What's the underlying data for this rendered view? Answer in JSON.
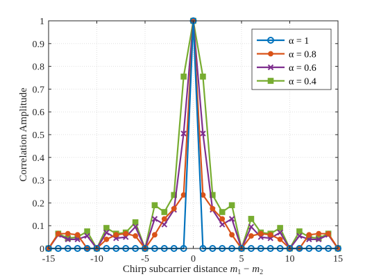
{
  "chart_data": {
    "type": "line",
    "xlabel": "Chirp subcarrier distance ",
    "xlabel_math": "m",
    "xlabel_sub1": "1",
    "xlabel_minus": " − ",
    "xlabel_math2": "m",
    "xlabel_sub2": "2",
    "ylabel": "Correlation Amplitude",
    "xlim": [
      -15,
      15
    ],
    "ylim": [
      0,
      1
    ],
    "xticks": [
      -15,
      -10,
      -5,
      0,
      5,
      10,
      15
    ],
    "xtick_labels": [
      "-15",
      "-10",
      "-5",
      "0",
      "5",
      "10",
      "15"
    ],
    "yticks": [
      0,
      0.1,
      0.2,
      0.3,
      0.4,
      0.5,
      0.6,
      0.7,
      0.8,
      0.9,
      1
    ],
    "ytick_labels": [
      "0",
      "0.1",
      "0.2",
      "0.3",
      "0.4",
      "0.5",
      "0.6",
      "0.7",
      "0.8",
      "0.9",
      "1"
    ],
    "grid": true,
    "legend_position": "top-right",
    "x": [
      -15,
      -14,
      -13,
      -12,
      -11,
      -10,
      -9,
      -8,
      -7,
      -6,
      -5,
      -4,
      -3,
      -2,
      -1,
      0,
      1,
      2,
      3,
      4,
      5,
      6,
      7,
      8,
      9,
      10,
      11,
      12,
      13,
      14,
      15
    ],
    "series": [
      {
        "name": "α = 1",
        "color": "#0072BD",
        "marker": "circle",
        "values": [
          0,
          0,
          0,
          0,
          0,
          0,
          0,
          0,
          0,
          0,
          0,
          0,
          0,
          0,
          0,
          1,
          0,
          0,
          0,
          0,
          0,
          0,
          0,
          0,
          0,
          0,
          0,
          0,
          0,
          0,
          0
        ]
      },
      {
        "name": "α = 0.8",
        "color": "#D95319",
        "marker": "dot",
        "values": [
          0,
          0.065,
          0.065,
          0.06,
          0,
          0,
          0.04,
          0.06,
          0.065,
          0.055,
          0,
          0.06,
          0.13,
          0.175,
          0.235,
          1,
          0.235,
          0.175,
          0.13,
          0.06,
          0,
          0.055,
          0.065,
          0.06,
          0.04,
          0,
          0,
          0.06,
          0.065,
          0.065,
          0
        ]
      },
      {
        "name": "α = 0.6",
        "color": "#7E2F8E",
        "marker": "x",
        "values": [
          0,
          0.06,
          0.04,
          0.04,
          0.055,
          0,
          0.07,
          0.045,
          0.05,
          0.095,
          0,
          0.13,
          0.105,
          0.17,
          0.505,
          1,
          0.505,
          0.17,
          0.105,
          0.13,
          0,
          0.095,
          0.05,
          0.045,
          0.07,
          0,
          0.055,
          0.04,
          0.04,
          0.06,
          0
        ]
      },
      {
        "name": "α = 0.4",
        "color": "#77AC30",
        "marker": "square",
        "values": [
          0,
          0.065,
          0.045,
          0.05,
          0.075,
          0,
          0.09,
          0.065,
          0.07,
          0.115,
          0,
          0.19,
          0.16,
          0.235,
          0.755,
          1,
          0.755,
          0.235,
          0.16,
          0.19,
          0,
          0.13,
          0.07,
          0.065,
          0.09,
          0,
          0.075,
          0.05,
          0.045,
          0.065,
          0
        ]
      }
    ]
  }
}
